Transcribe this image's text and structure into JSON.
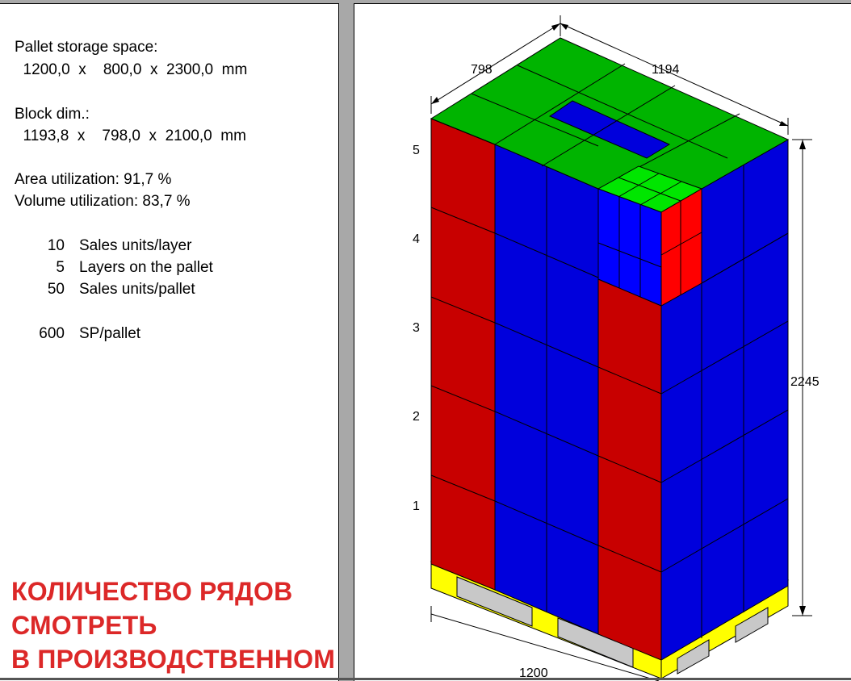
{
  "info": {
    "storage_label": "Pallet storage space:",
    "storage_dims": "  1200,0  x    800,0  x  2300,0  mm",
    "block_label": "Block dim.:",
    "block_dims": "  1193,8  x    798,0  x  2100,0  mm",
    "area_util": "Area utilization: 91,7 %",
    "volume_util": "Volume utilization: 83,7 %",
    "stats": [
      {
        "value": "10",
        "label": "Sales units/layer"
      },
      {
        "value": "5",
        "label": "Layers on the pallet"
      },
      {
        "value": "50",
        "label": "Sales units/pallet"
      }
    ],
    "sp_value": "600",
    "sp_label": "SP/pallet"
  },
  "overlay_text": {
    "line1": "КОЛИЧЕСТВО РЯДОВ",
    "line2": "СМОТРЕТЬ",
    "line3": "В ПРОИЗВОДСТВЕННОМ"
  },
  "diagram": {
    "dim_depth": "798",
    "dim_width": "1194",
    "dim_height": "2245",
    "dim_pallet": "1200",
    "layer_labels": [
      "5",
      "4",
      "3",
      "2",
      "1"
    ],
    "colors": {
      "red": "#c80000",
      "blue": "#0000dc",
      "green": "#00b400",
      "bright_red": "#ff0000",
      "bright_green": "#00e600",
      "pallet_yellow": "#ffff00",
      "pallet_gray": "#c8c8c8"
    }
  }
}
